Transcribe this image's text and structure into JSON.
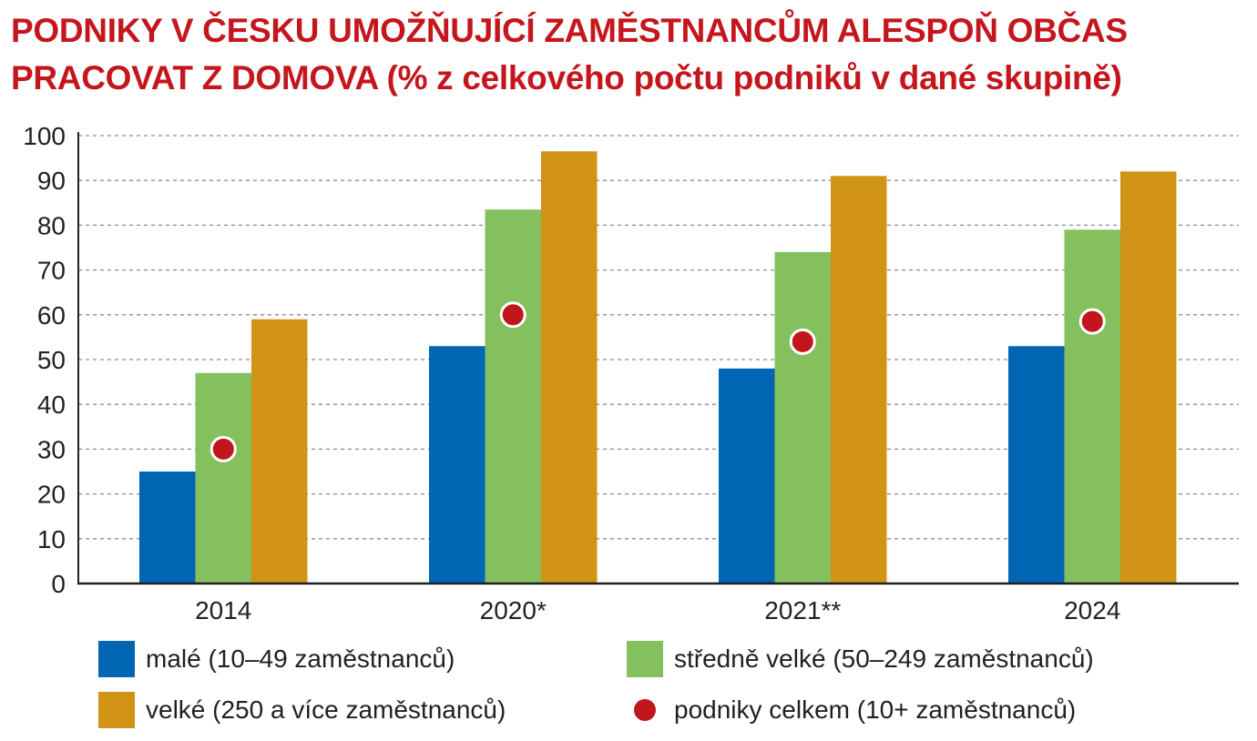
{
  "title_lines": [
    "PODNIKY V ČESKU UMOŽŇUJÍCÍ ZAMĚSTNANCŮM ALESPOŇ OBČAS",
    "PRACOVAT Z DOMOVA (% z celkového počtu podniků v dané skupině)"
  ],
  "colors": {
    "title": "#c4161c",
    "male": "#0066b3",
    "stredne": "#85c05f",
    "velke": "#d09316",
    "celkem": "#c0161c",
    "grid": "#8c8c8c",
    "axis": "#231f20"
  },
  "chart_data": {
    "type": "bar",
    "categories": [
      "2014",
      "2020*",
      "2021**",
      "2024"
    ],
    "series": [
      {
        "name": "malé (10–49 zaměstnanců)",
        "values": [
          25,
          53,
          48,
          53
        ]
      },
      {
        "name": "středně velké (50–249 zaměstnanců)",
        "values": [
          47,
          83.5,
          74,
          79
        ]
      },
      {
        "name": "velké (250 a více zaměstnanců)",
        "values": [
          59,
          96.5,
          91,
          92
        ]
      }
    ],
    "markers": {
      "name": "podniky celkem (10+ zaměstnanců)",
      "values": [
        30,
        60,
        54,
        58.5
      ]
    },
    "ylim": [
      0,
      100
    ],
    "yticks": [
      "0",
      "10",
      "20",
      "30",
      "40",
      "50",
      "60",
      "70",
      "80",
      "90",
      "100"
    ],
    "grid": true,
    "legend_position": "bottom"
  }
}
